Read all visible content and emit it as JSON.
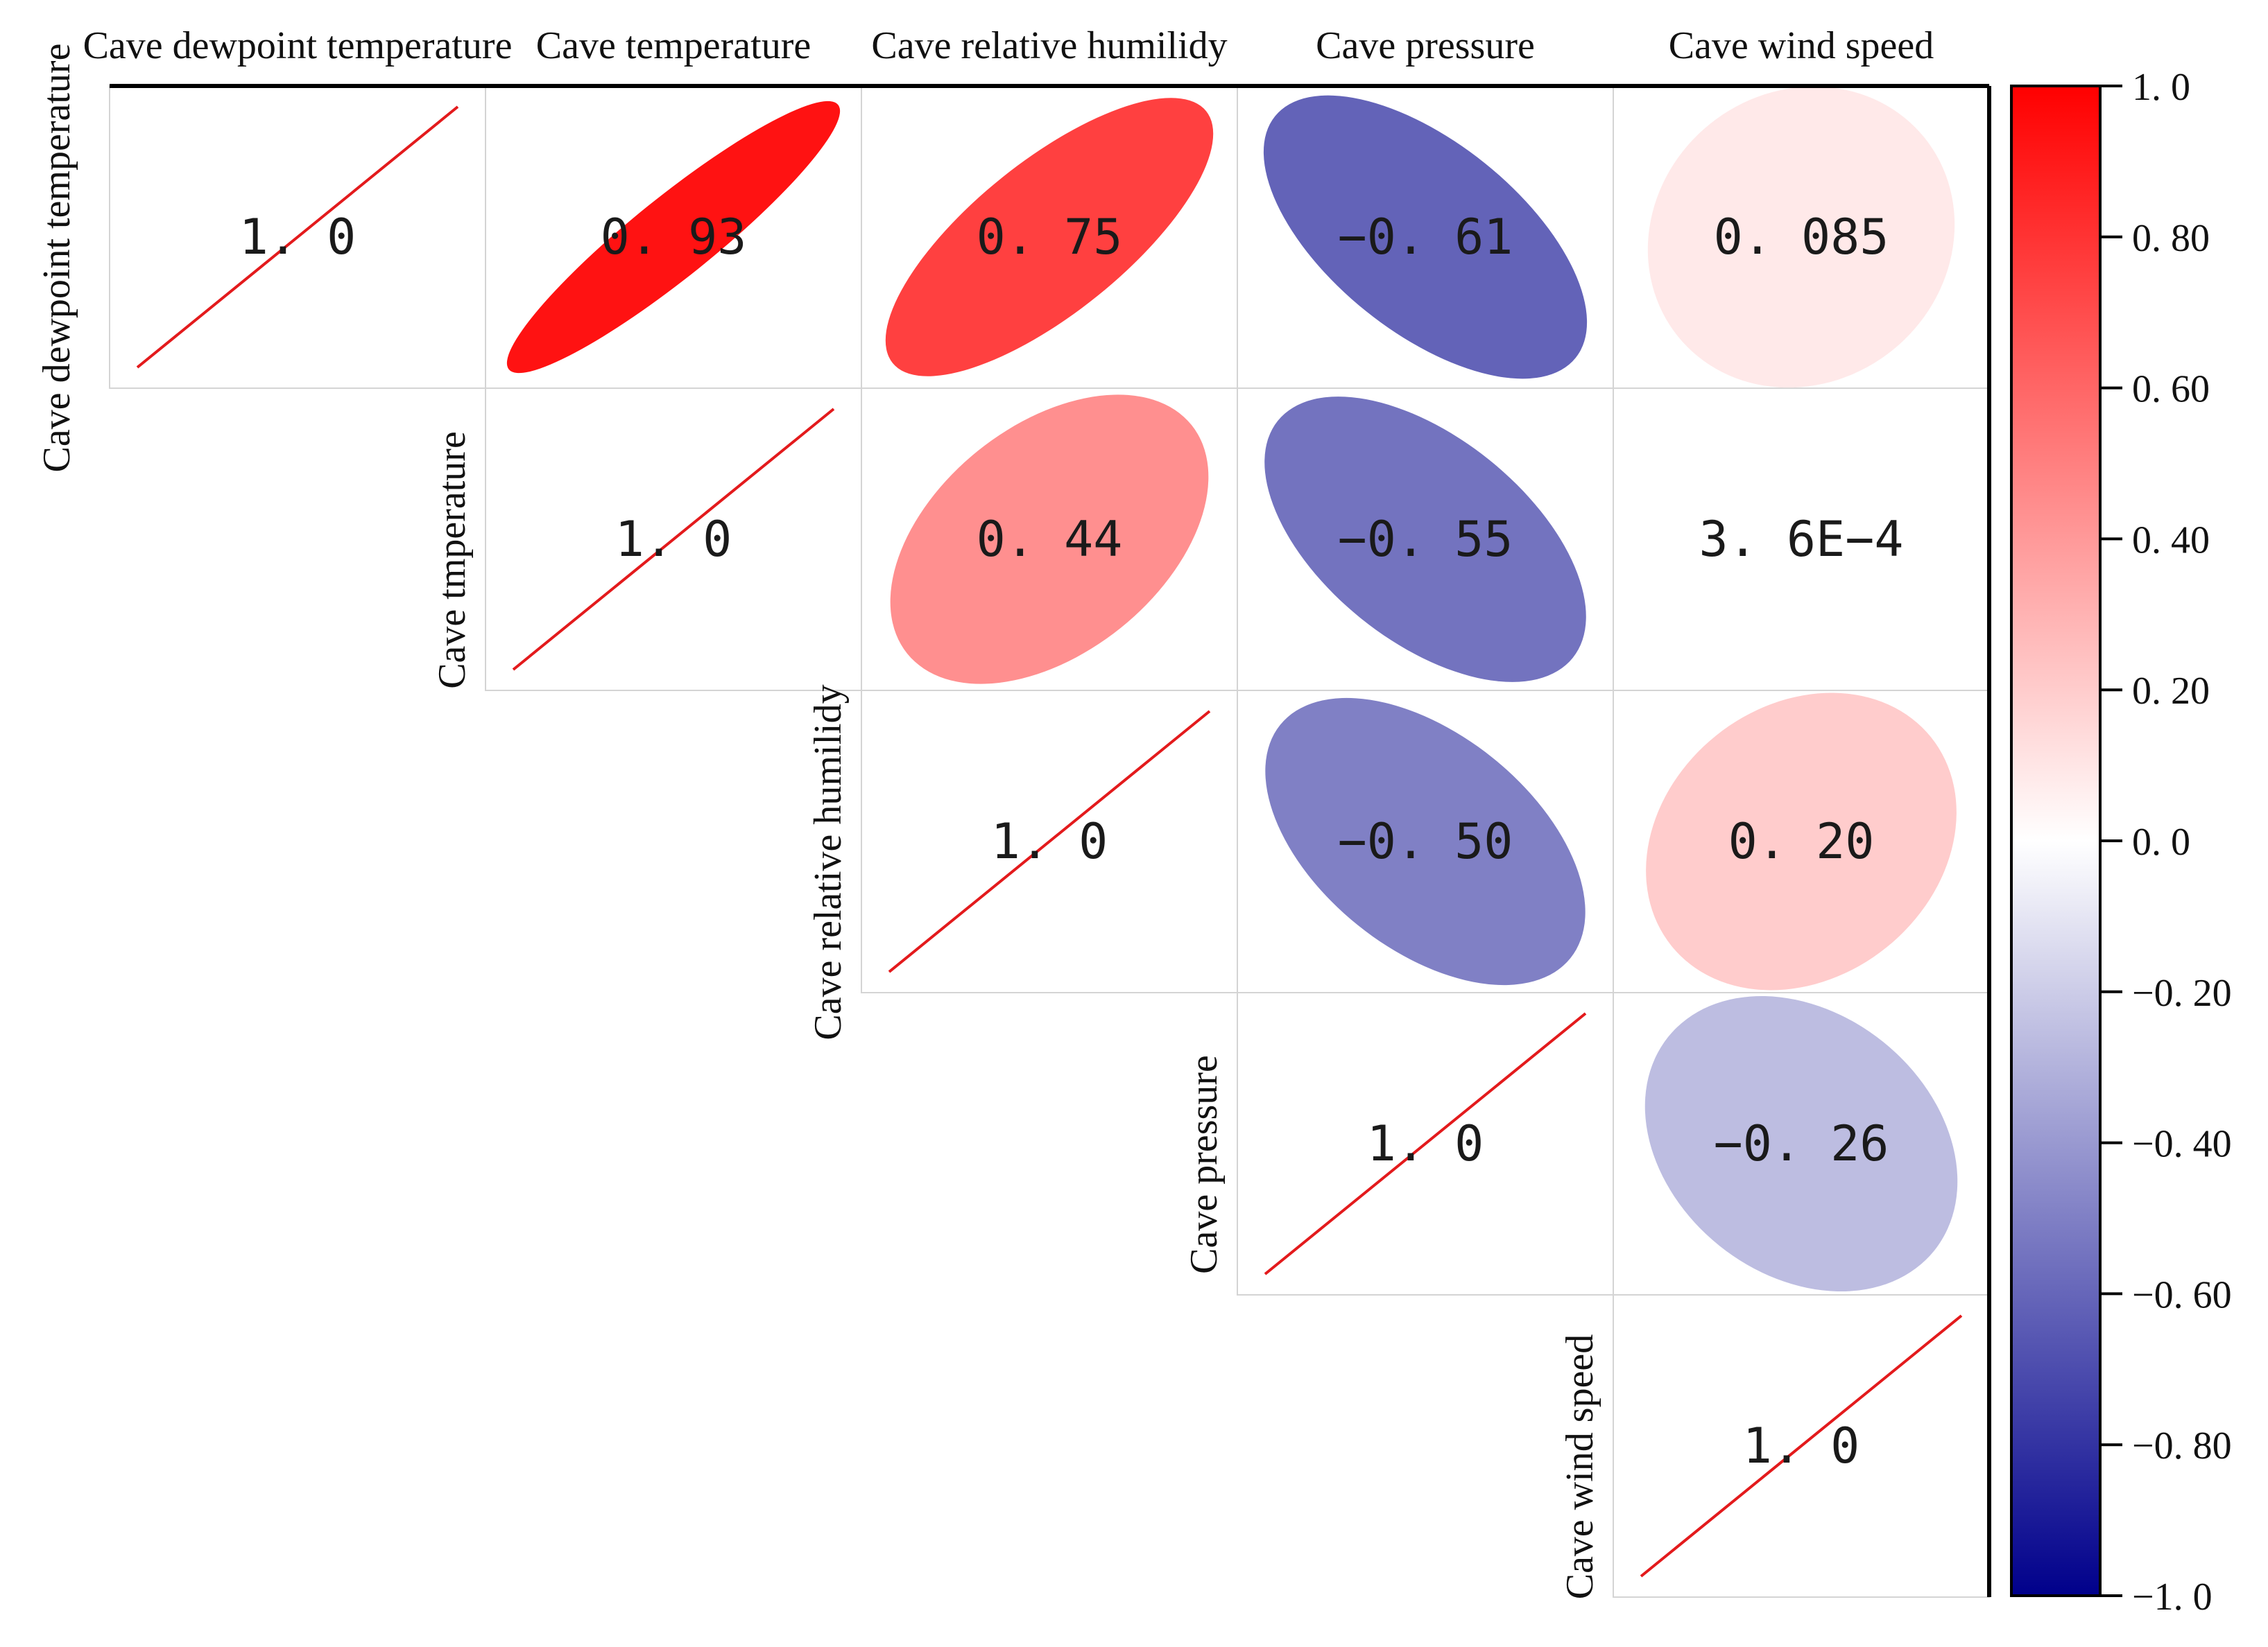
{
  "chart_data": {
    "type": "heatmap",
    "style": "correlation-ellipse-upper-triangle",
    "variables": [
      "Cave dewpoint temperature",
      "Cave  temperature",
      "Cave relative humilidy",
      "Cave pressure",
      "Cave wind speed"
    ],
    "row_labels": [
      "Cave dewpoint temperature",
      "Cave tmperature",
      "Cave relative humilidy",
      "Cave pressure",
      "Cave wind speed"
    ],
    "matrix": [
      [
        1.0,
        0.93,
        0.75,
        -0.61,
        0.085
      ],
      [
        null,
        1.0,
        0.44,
        -0.55,
        0.00036
      ],
      [
        null,
        null,
        1.0,
        -0.5,
        0.2
      ],
      [
        null,
        null,
        null,
        1.0,
        -0.26
      ],
      [
        null,
        null,
        null,
        null,
        1.0
      ]
    ],
    "value_labels": [
      [
        "1. 0",
        "0. 93",
        "0. 75",
        "−0. 61",
        "0. 085"
      ],
      [
        null,
        "1. 0",
        "0. 44",
        "−0. 55",
        "3. 6E−4"
      ],
      [
        null,
        null,
        "1. 0",
        "−0. 50",
        "0. 20"
      ],
      [
        null,
        null,
        null,
        "1. 0",
        "−0. 26"
      ],
      [
        null,
        null,
        null,
        null,
        "1. 0"
      ]
    ],
    "colorbar": {
      "range": [
        -1.0,
        1.0
      ],
      "ticks": [
        1.0,
        0.8,
        0.6,
        0.4,
        0.2,
        0.0,
        -0.2,
        -0.4,
        -0.6,
        -0.8,
        -1.0
      ],
      "tick_labels": [
        "1. 0",
        "0. 80",
        "0. 60",
        "0. 40",
        "0. 20",
        "0. 0",
        "−0. 20",
        "−0. 40",
        "−0. 60",
        "−0. 80",
        "−1. 0"
      ],
      "colors": {
        "positive": "#ff0000",
        "zero": "#ffffff",
        "negative": "#00008b"
      }
    },
    "diagonal_line_color": "#e31a1c",
    "grid": true,
    "legend_position": "right"
  }
}
